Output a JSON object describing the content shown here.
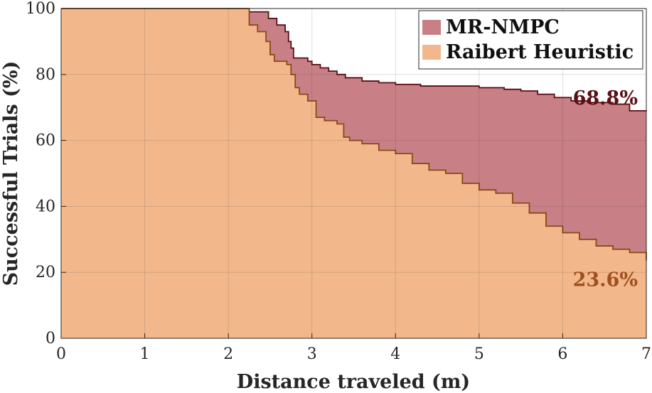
{
  "chart_data": {
    "type": "area",
    "title": "",
    "xlabel": "Distance traveled (m)",
    "ylabel": "Successful Trials (%)",
    "xlim": [
      0,
      7
    ],
    "ylim": [
      0,
      100
    ],
    "xticks": [
      "0",
      "1",
      "2",
      "3",
      "4",
      "5",
      "6",
      "7"
    ],
    "yticks": [
      "0",
      "20",
      "40",
      "60",
      "80",
      "100"
    ],
    "grid": true,
    "legend_position": "top-right",
    "series": [
      {
        "name": "MR-NMPC",
        "fill": "#c97f86",
        "line": "#5a0f14",
        "end_label": "68.8%",
        "end_label_color": "#5a0f14",
        "x": [
          0,
          2.2,
          2.23,
          2.3,
          2.48,
          2.58,
          2.68,
          2.72,
          2.75,
          2.78,
          2.8,
          2.85,
          2.95,
          3.0,
          3.1,
          3.2,
          3.3,
          3.4,
          3.6,
          3.8,
          4.0,
          4.3,
          4.7,
          5.0,
          5.3,
          5.5,
          5.7,
          5.9,
          6.1,
          6.3,
          6.6,
          6.8,
          7.0
        ],
        "y": [
          100,
          100,
          99,
          99,
          97,
          95,
          93,
          90,
          88,
          85,
          85,
          85,
          84,
          83,
          82,
          81,
          80,
          79,
          78,
          77.5,
          77,
          76.5,
          76.5,
          76,
          75.5,
          75,
          74,
          73,
          72,
          71.5,
          71,
          69,
          68.8
        ]
      },
      {
        "name": "Raibert Heuristic",
        "fill": "#f2b88c",
        "line": "#8a4a14",
        "end_label": "23.6%",
        "end_label_color": "#a0501e",
        "x": [
          0,
          2.2,
          2.25,
          2.35,
          2.45,
          2.5,
          2.55,
          2.6,
          2.7,
          2.75,
          2.8,
          2.85,
          2.95,
          3.05,
          3.15,
          3.3,
          3.38,
          3.45,
          3.6,
          3.8,
          4.0,
          4.2,
          4.4,
          4.6,
          4.8,
          5.0,
          5.2,
          5.4,
          5.6,
          5.8,
          6.0,
          6.2,
          6.4,
          6.6,
          6.8,
          7.0
        ],
        "y": [
          100,
          100,
          95,
          93,
          90,
          86,
          84,
          84,
          83,
          80,
          76,
          74,
          72,
          67,
          66,
          65,
          61,
          60,
          59,
          57,
          56,
          53,
          51,
          50,
          47,
          45,
          44,
          41,
          38,
          34,
          32,
          30,
          28,
          27,
          26,
          23.6
        ]
      }
    ]
  }
}
